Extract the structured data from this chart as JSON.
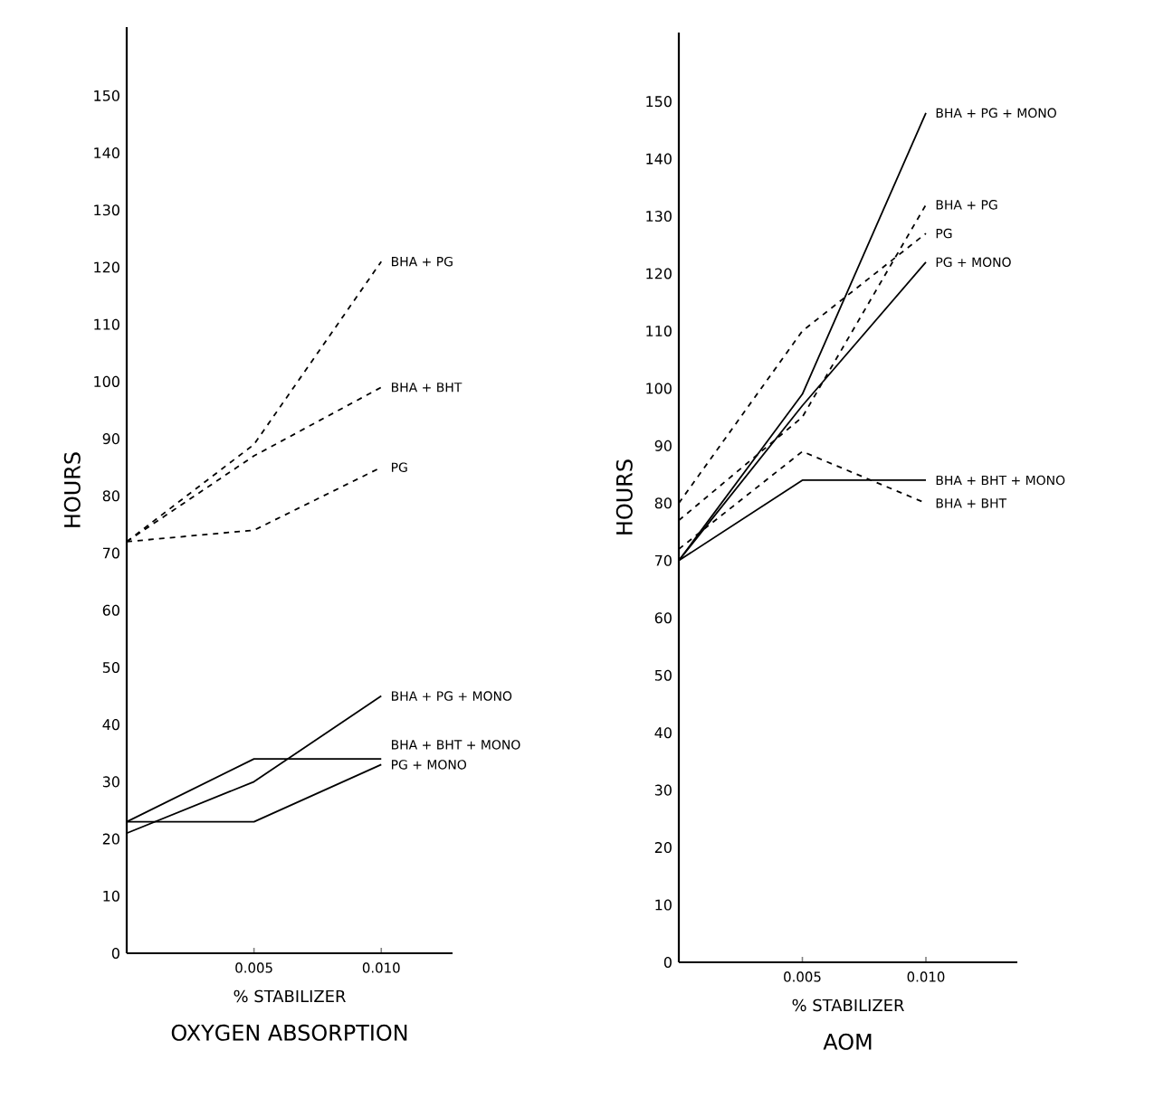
{
  "chart_data": [
    {
      "type": "line",
      "title": "OXYGEN ABSORPTION",
      "xlabel": "% STABILIZER",
      "ylabel": "HOURS",
      "x": [
        0,
        0.005,
        0.01
      ],
      "xlim": [
        0,
        0.0128
      ],
      "ylim": [
        0,
        162
      ],
      "xticks": [
        0.005,
        {
          "value": 0.01,
          "label": "0.010"
        }
      ],
      "yticks": [
        0,
        10,
        20,
        30,
        40,
        50,
        60,
        70,
        80,
        90,
        100,
        110,
        120,
        130,
        140,
        150
      ],
      "series": [
        {
          "name": "BHA + PG",
          "color": "#000000",
          "line_style": "dashed",
          "values": [
            72,
            89,
            121
          ]
        },
        {
          "name": "BHA + BHT",
          "color": "#000000",
          "line_style": "dashed",
          "values": [
            72,
            87,
            99
          ]
        },
        {
          "name": "PG",
          "color": "#000000",
          "line_style": "dashed",
          "values": [
            72,
            74,
            85
          ]
        },
        {
          "name": "BHA + PG + MONO",
          "color": "#000000",
          "line_style": "solid",
          "values": [
            21,
            30,
            45
          ]
        },
        {
          "name": "BHA + BHT + MONO",
          "color": "#000000",
          "line_style": "solid",
          "values": [
            23,
            34,
            34
          ]
        },
        {
          "name": "PG + MONO",
          "color": "#000000",
          "line_style": "solid",
          "values": [
            23,
            23,
            33
          ]
        }
      ]
    },
    {
      "type": "line",
      "title": "AOM",
      "xlabel": "% STABILIZER",
      "ylabel": "HOURS",
      "x": [
        0,
        0.005,
        0.01
      ],
      "xlim": [
        0,
        0.0137
      ],
      "ylim": [
        0,
        162
      ],
      "xticks": [
        0.005,
        {
          "value": 0.01,
          "label": "0.010"
        }
      ],
      "yticks": [
        0,
        10,
        20,
        30,
        40,
        50,
        60,
        70,
        80,
        90,
        100,
        110,
        120,
        130,
        140,
        150
      ],
      "series": [
        {
          "name": "BHA + PG + MONO",
          "color": "#000000",
          "line_style": "solid",
          "values": [
            70,
            99,
            148
          ]
        },
        {
          "name": "BHA + PG",
          "color": "#000000",
          "line_style": "dashed",
          "values": [
            77,
            95,
            132
          ]
        },
        {
          "name": "PG",
          "color": "#000000",
          "line_style": "dashed",
          "values": [
            80,
            110,
            127
          ]
        },
        {
          "name": "PG + MONO",
          "color": "#000000",
          "line_style": "solid",
          "values": [
            70,
            97,
            122
          ]
        },
        {
          "name": "BHA + BHT + MONO",
          "color": "#000000",
          "line_style": "solid",
          "values": [
            70,
            84,
            84
          ]
        },
        {
          "name": "BHA + BHT",
          "color": "#000000",
          "line_style": "dashed",
          "values": [
            72,
            89,
            80
          ]
        }
      ]
    }
  ]
}
